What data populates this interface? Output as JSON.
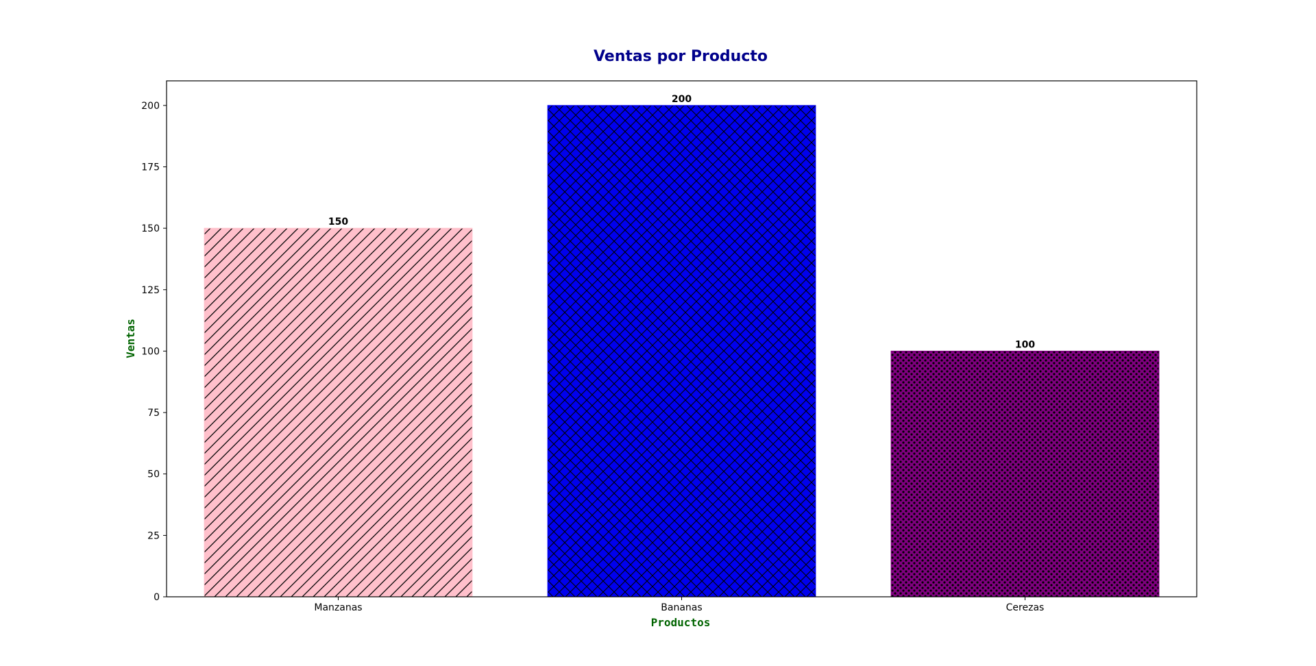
{
  "chart_data": {
    "type": "bar",
    "title": "Ventas por Producto",
    "xlabel": "Productos",
    "ylabel": "Ventas",
    "categories": [
      "Manzanas",
      "Bananas",
      "Cerezas"
    ],
    "values": [
      150,
      200,
      100
    ],
    "data_labels": [
      "150",
      "200",
      "100"
    ],
    "bar_colors": [
      "#ffc0cb",
      "#0000ee",
      "#800080"
    ],
    "bar_hatches": [
      "diagonal",
      "crosshatch",
      "dots"
    ],
    "title_color": "#00008b",
    "axis_label_color": "#006400",
    "ylim": [
      0,
      210
    ],
    "yticks": [
      0,
      25,
      50,
      75,
      100,
      125,
      150,
      175,
      200
    ],
    "ytick_labels": [
      "0",
      "25",
      "50",
      "75",
      "100",
      "125",
      "150",
      "175",
      "200"
    ],
    "grid": false,
    "legend": "none"
  }
}
